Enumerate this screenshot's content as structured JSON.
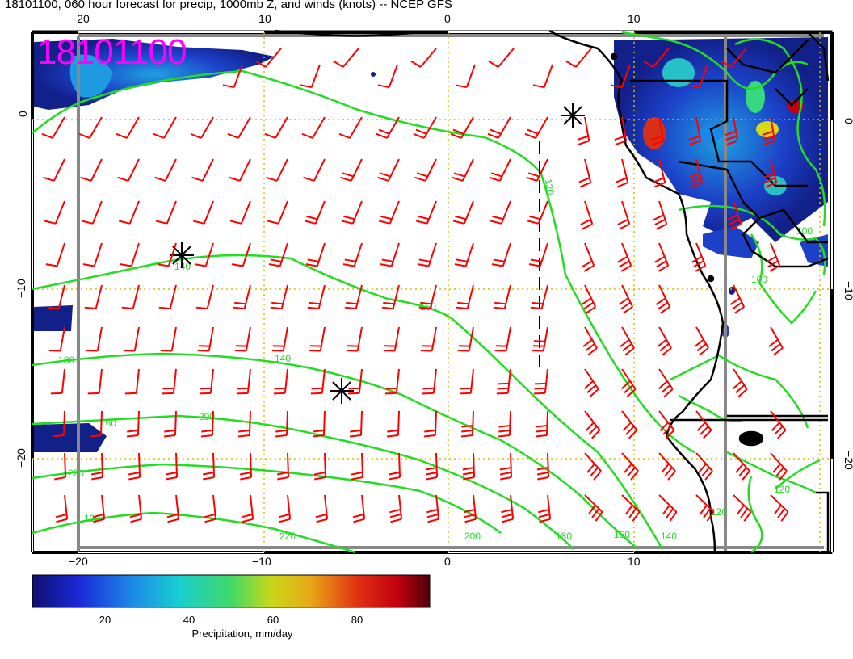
{
  "title": "18101100, 060 hour forecast for precip, 1000mb Z, and winds (knots) -- NCEP GFS",
  "stamp": "18101100",
  "axes": {
    "top_lon_labels": [
      "−20",
      "−10",
      "0",
      "10"
    ],
    "bottom_lon_labels": [
      "−20",
      "−10",
      "0",
      "10"
    ],
    "left_lat_labels": [
      "0",
      "−10",
      "−20"
    ],
    "right_lat_labels": [
      "0",
      "−10",
      "−20"
    ]
  },
  "contour_labels": [
    "120",
    "140",
    "160",
    "180",
    "200",
    "220",
    "160",
    "140",
    "120",
    "100",
    "120",
    "100",
    "180",
    "140",
    "160",
    "200",
    "220",
    "120"
  ],
  "colorbar": {
    "ticks": [
      "20",
      "40",
      "60",
      "80"
    ],
    "title": "Precipitation, mm/day"
  },
  "colors": {
    "contour": "#22dd22",
    "wind_barb": "#ff0000",
    "coast": "#000000",
    "grid": "#d4c000",
    "stamp": "#ff00ff"
  }
}
